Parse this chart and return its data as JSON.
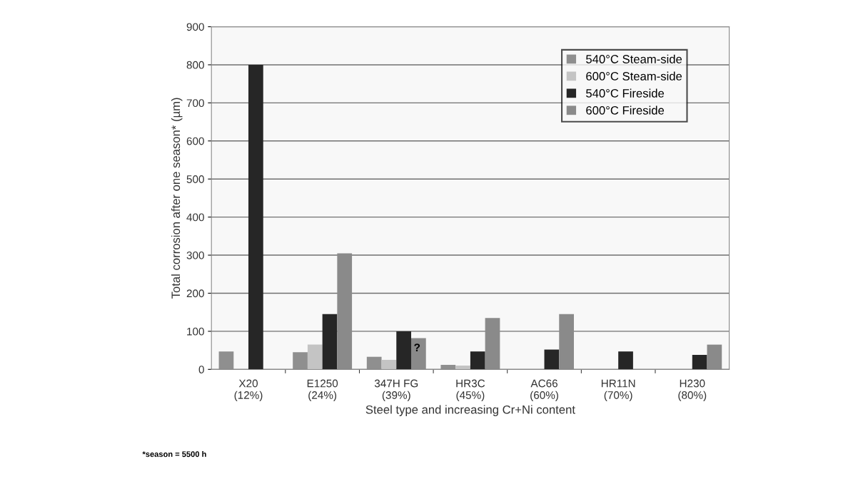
{
  "chart_data": {
    "type": "bar",
    "xlabel": "Steel type and increasing Cr+Ni content",
    "ylabel": "Total corrosion after one season* (µm)",
    "categories": [
      "X20\n(12%)",
      "E1250\n(24%)",
      "347H FG\n(39%)",
      "HR3C\n(45%)",
      "AC66\n(60%)",
      "HR11N\n(70%)",
      "H230\n(80%)"
    ],
    "series": [
      {
        "name": "540°C Steam-side",
        "color": "#8f8f8f",
        "values": [
          47,
          45,
          33,
          12,
          null,
          null,
          null
        ]
      },
      {
        "name": "600°C Steam-side",
        "color": "#c4c4c4",
        "values": [
          null,
          65,
          25,
          10,
          null,
          null,
          null
        ]
      },
      {
        "name": "540°C Fireside",
        "color": "#262626",
        "values": [
          800,
          145,
          100,
          47,
          52,
          47,
          38
        ]
      },
      {
        "name": "600°C Fireside",
        "color": "#8a8a8a",
        "values": [
          null,
          305,
          82,
          135,
          145,
          null,
          65
        ]
      }
    ],
    "ylim": [
      0,
      900
    ],
    "yticks": [
      0,
      100,
      200,
      300,
      400,
      500,
      600,
      700,
      800,
      900
    ],
    "grid": "y",
    "legend": "top right",
    "annotations": [
      {
        "text": "?",
        "x": "347H FG\n(39%)",
        "y": 55
      },
      "*season = 5500 h"
    ]
  }
}
